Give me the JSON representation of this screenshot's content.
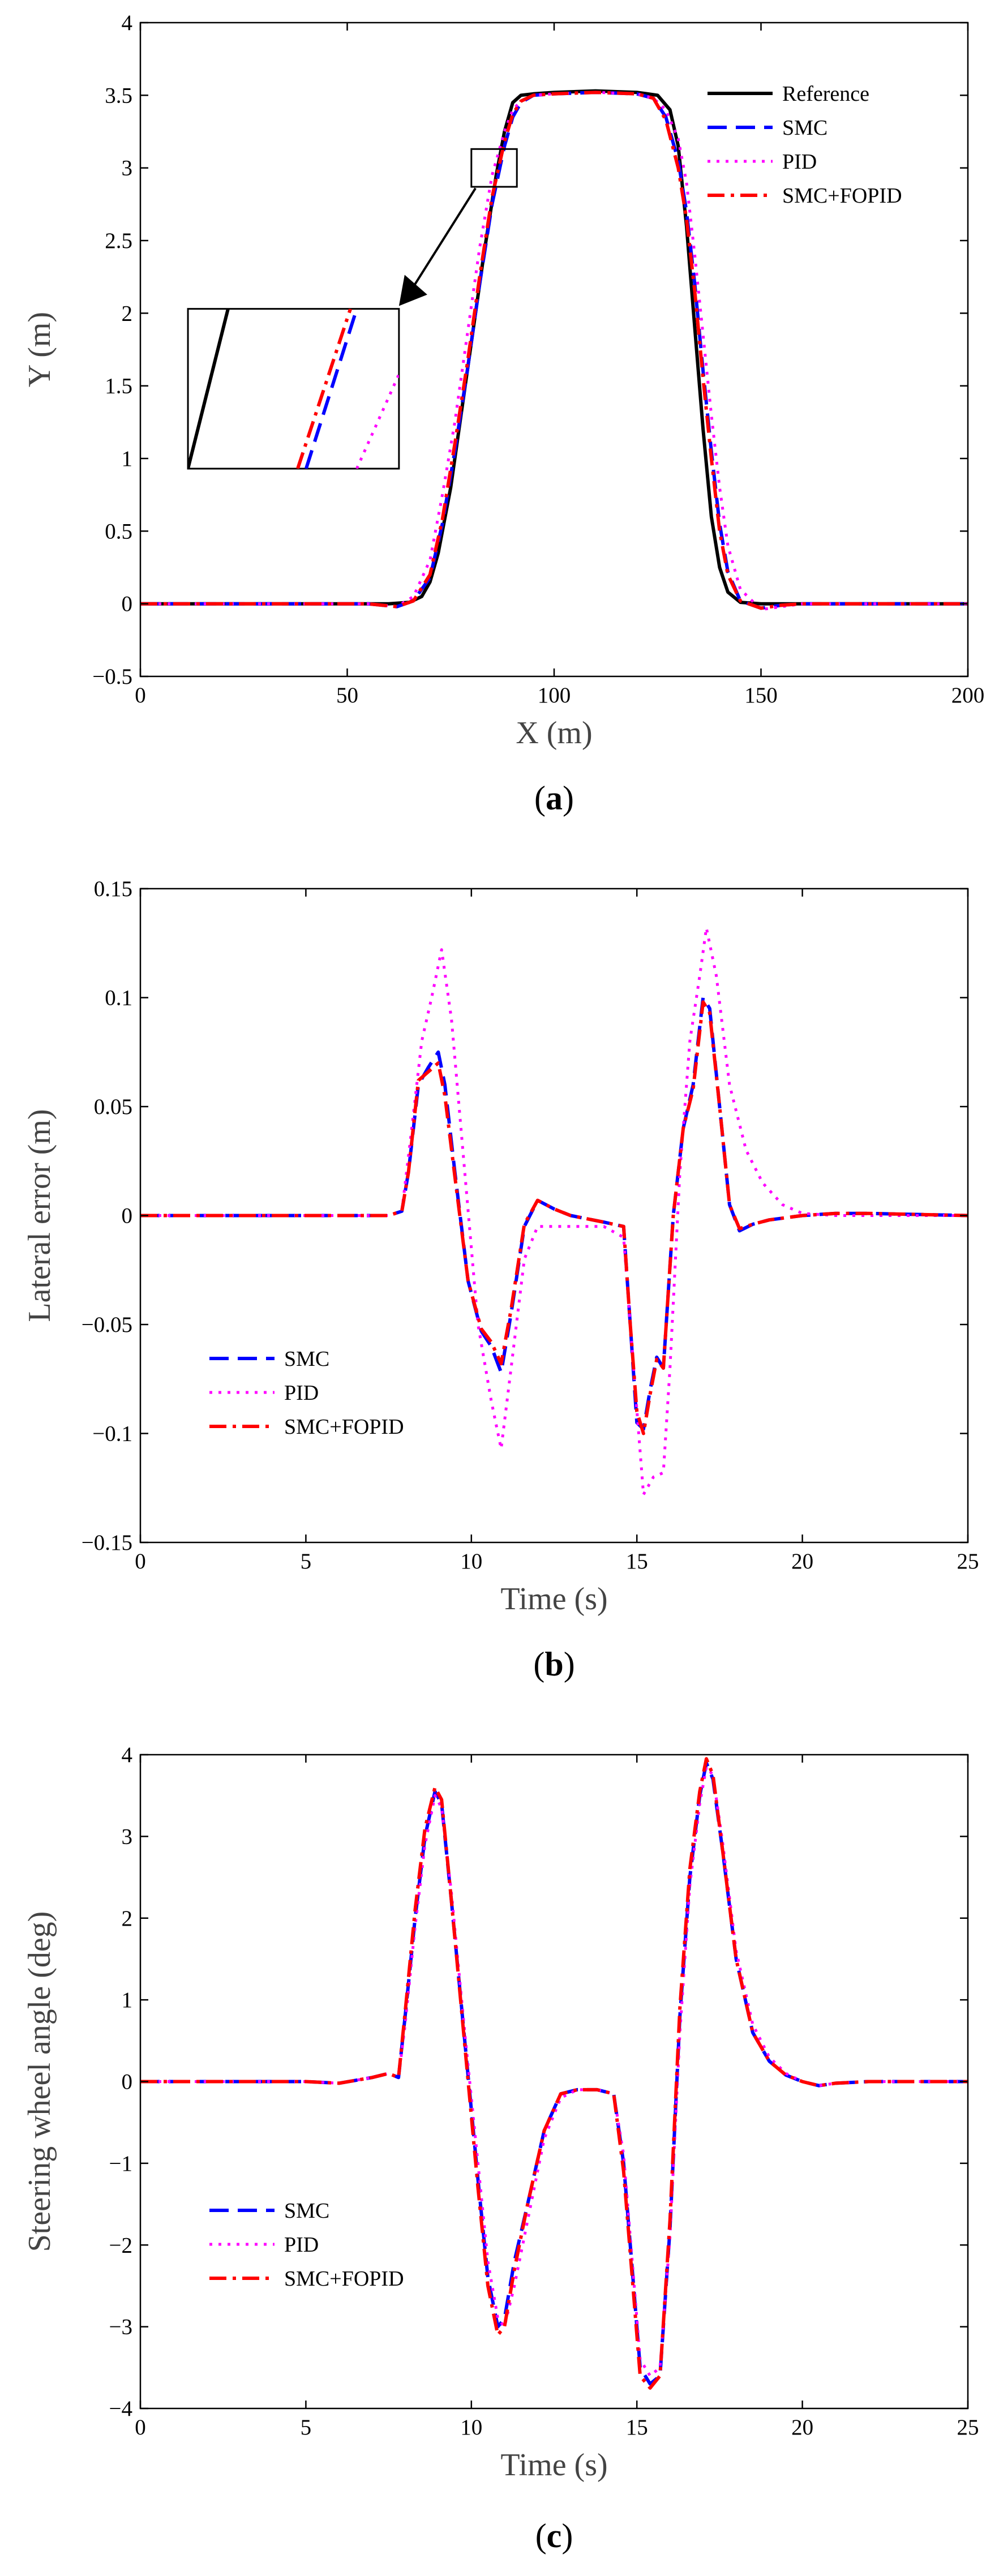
{
  "chart_data": [
    {
      "id": "a",
      "type": "line",
      "caption_open": "(",
      "caption_letter": "a",
      "caption_close": ")",
      "xlabel": "X (m)",
      "ylabel": "Y (m)",
      "xlim": [
        0,
        200
      ],
      "ylim": [
        -0.5,
        4
      ],
      "xticks": [
        0,
        50,
        100,
        150,
        200
      ],
      "xtick_labels": [
        "0",
        "50",
        "100",
        "150",
        "200"
      ],
      "yticks": [
        -0.5,
        0,
        0.5,
        1,
        1.5,
        2,
        2.5,
        3,
        3.5,
        4
      ],
      "ytick_labels": [
        "−0.5",
        "0",
        "0.5",
        "1",
        "1.5",
        "2",
        "2.5",
        "3",
        "3.5",
        "4"
      ],
      "legend_position": "top-right",
      "series": [
        {
          "name": "Reference",
          "color": "#000000",
          "style": "solid",
          "x": [
            0,
            60,
            65,
            68,
            70,
            72,
            75,
            78,
            80,
            83,
            86,
            88,
            90,
            92,
            95,
            100,
            110,
            120,
            125,
            128,
            130,
            132,
            134,
            136,
            138,
            140,
            142,
            145,
            150,
            200
          ],
          "y": [
            0,
            0,
            0.01,
            0.05,
            0.15,
            0.35,
            0.8,
            1.4,
            1.8,
            2.4,
            2.95,
            3.25,
            3.45,
            3.5,
            3.51,
            3.52,
            3.53,
            3.52,
            3.5,
            3.4,
            3.15,
            2.6,
            1.9,
            1.2,
            0.6,
            0.25,
            0.08,
            0.01,
            0,
            0
          ]
        },
        {
          "name": "SMC",
          "color": "#0000ff",
          "style": "dash",
          "x": [
            0,
            55,
            62,
            66,
            70,
            73,
            76,
            79,
            82,
            85,
            88,
            90,
            92,
            95,
            100,
            110,
            120,
            124,
            127,
            130,
            132,
            134,
            136,
            138,
            140,
            142,
            145,
            150,
            155,
            160,
            170,
            200
          ],
          "y": [
            0,
            0,
            -0.02,
            0.02,
            0.18,
            0.55,
            1.05,
            1.6,
            2.2,
            2.75,
            3.15,
            3.35,
            3.45,
            3.5,
            3.51,
            3.52,
            3.51,
            3.48,
            3.35,
            3.05,
            2.7,
            2.2,
            1.6,
            1.05,
            0.55,
            0.22,
            0.02,
            -0.03,
            -0.01,
            0,
            0,
            0
          ]
        },
        {
          "name": "PID",
          "color": "#ff00ff",
          "style": "dot",
          "x": [
            0,
            55,
            62,
            66,
            70,
            73,
            76,
            79,
            82,
            85,
            88,
            90,
            92,
            95,
            100,
            110,
            120,
            124,
            127,
            130,
            132,
            134,
            136,
            138,
            140,
            142,
            145,
            150,
            155,
            160,
            170,
            200
          ],
          "y": [
            0,
            0,
            -0.02,
            0.05,
            0.3,
            0.75,
            1.25,
            1.85,
            2.45,
            2.95,
            3.25,
            3.4,
            3.46,
            3.5,
            3.51,
            3.52,
            3.51,
            3.48,
            3.4,
            3.2,
            2.9,
            2.4,
            1.85,
            1.3,
            0.8,
            0.4,
            0.1,
            -0.04,
            -0.02,
            0,
            0,
            0
          ]
        },
        {
          "name": "SMC+FOPID",
          "color": "#ff0000",
          "style": "dashdot",
          "x": [
            0,
            55,
            62,
            66,
            70,
            73,
            76,
            79,
            82,
            85,
            88,
            90,
            92,
            95,
            100,
            110,
            120,
            124,
            127,
            130,
            132,
            134,
            136,
            138,
            140,
            142,
            145,
            150,
            155,
            160,
            170,
            200
          ],
          "y": [
            0,
            0,
            -0.02,
            0.02,
            0.2,
            0.58,
            1.1,
            1.65,
            2.25,
            2.8,
            3.18,
            3.37,
            3.46,
            3.5,
            3.51,
            3.52,
            3.51,
            3.48,
            3.33,
            3.0,
            2.65,
            2.15,
            1.55,
            1.0,
            0.5,
            0.2,
            0.02,
            -0.03,
            -0.01,
            0,
            0,
            0
          ]
        }
      ],
      "annotations": [
        "zoom-rectangle-around-x-85-y-3",
        "arrow-to-inset",
        "inset-magnified-view"
      ]
    },
    {
      "id": "b",
      "type": "line",
      "caption_open": "(",
      "caption_letter": "b",
      "caption_close": ")",
      "xlabel": "Time (s)",
      "ylabel": "Lateral error (m)",
      "xlim": [
        0,
        25
      ],
      "ylim": [
        -0.15,
        0.15
      ],
      "xticks": [
        0,
        5,
        10,
        15,
        20,
        25
      ],
      "xtick_labels": [
        "0",
        "5",
        "10",
        "15",
        "20",
        "25"
      ],
      "yticks": [
        -0.15,
        -0.1,
        -0.05,
        0,
        0.05,
        0.1,
        0.15
      ],
      "ytick_labels": [
        "−0.15",
        "−0.1",
        "−0.05",
        "0",
        "0.05",
        "0.1",
        "0.15"
      ],
      "legend_position": "bottom-left",
      "series": [
        {
          "name": "SMC",
          "color": "#0000ff",
          "style": "dash",
          "x": [
            0,
            5,
            7.5,
            7.9,
            8.1,
            8.4,
            8.7,
            9.0,
            9.2,
            9.5,
            9.9,
            10.3,
            10.6,
            10.9,
            11.2,
            11.6,
            12.0,
            12.5,
            13,
            14,
            14.6,
            14.8,
            15.0,
            15.2,
            15.4,
            15.6,
            15.8,
            16.1,
            16.4,
            16.7,
            17.0,
            17.2,
            17.5,
            17.8,
            18.1,
            18.5,
            19,
            20,
            21,
            22,
            25
          ],
          "y": [
            0,
            0,
            0,
            0.002,
            0.02,
            0.06,
            0.068,
            0.075,
            0.06,
            0.02,
            -0.03,
            -0.053,
            -0.06,
            -0.072,
            -0.045,
            -0.005,
            0.007,
            0.003,
            0,
            -0.003,
            -0.005,
            -0.05,
            -0.095,
            -0.098,
            -0.08,
            -0.065,
            -0.07,
            0,
            0.04,
            0.06,
            0.1,
            0.095,
            0.05,
            0.005,
            -0.007,
            -0.004,
            -0.002,
            0,
            0.001,
            0.001,
            0
          ]
        },
        {
          "name": "PID",
          "color": "#ff00ff",
          "style": "dot",
          "x": [
            0,
            5,
            7.5,
            7.9,
            8.2,
            8.5,
            8.8,
            9.1,
            9.4,
            9.8,
            10.2,
            10.6,
            10.9,
            11.2,
            11.6,
            12.0,
            12.5,
            13,
            14,
            14.6,
            14.9,
            15.2,
            15.5,
            15.8,
            16.0,
            16.3,
            16.6,
            16.9,
            17.1,
            17.4,
            17.8,
            18.3,
            18.8,
            19.4,
            20,
            21,
            22,
            25
          ],
          "y": [
            0,
            0,
            0,
            0.002,
            0.04,
            0.08,
            0.1,
            0.122,
            0.09,
            0.02,
            -0.05,
            -0.085,
            -0.107,
            -0.07,
            -0.02,
            -0.005,
            -0.005,
            -0.005,
            -0.005,
            -0.01,
            -0.07,
            -0.128,
            -0.12,
            -0.118,
            -0.07,
            0.02,
            0.08,
            0.11,
            0.132,
            0.11,
            0.06,
            0.03,
            0.015,
            0.005,
            0.001,
            0,
            0,
            0
          ]
        },
        {
          "name": "SMC+FOPID",
          "color": "#ff0000",
          "style": "dashdot",
          "x": [
            0,
            5,
            7.5,
            7.9,
            8.1,
            8.4,
            8.7,
            9.0,
            9.2,
            9.5,
            9.9,
            10.3,
            10.6,
            10.9,
            11.2,
            11.6,
            12.0,
            12.5,
            13,
            14,
            14.6,
            14.8,
            15.0,
            15.2,
            15.4,
            15.6,
            15.8,
            16.1,
            16.4,
            16.7,
            17.0,
            17.2,
            17.5,
            17.8,
            18.1,
            18.5,
            19,
            20,
            21,
            22,
            25
          ],
          "y": [
            0,
            0,
            0,
            0.002,
            0.02,
            0.062,
            0.066,
            0.07,
            0.055,
            0.018,
            -0.03,
            -0.052,
            -0.058,
            -0.068,
            -0.043,
            -0.004,
            0.007,
            0.003,
            0,
            -0.003,
            -0.005,
            -0.05,
            -0.09,
            -0.1,
            -0.082,
            -0.066,
            -0.07,
            0,
            0.04,
            0.058,
            0.098,
            0.093,
            0.05,
            0.005,
            -0.006,
            -0.004,
            -0.002,
            0,
            0.001,
            0.001,
            0
          ]
        }
      ]
    },
    {
      "id": "c",
      "type": "line",
      "caption_open": "(",
      "caption_letter": "c",
      "caption_close": ")",
      "xlabel": "Time (s)",
      "ylabel": "Steering wheel angle (deg)",
      "xlim": [
        0,
        25
      ],
      "ylim": [
        -4,
        4
      ],
      "xticks": [
        0,
        5,
        10,
        15,
        20,
        25
      ],
      "xtick_labels": [
        "0",
        "5",
        "10",
        "15",
        "20",
        "25"
      ],
      "yticks": [
        -4,
        -3,
        -2,
        -1,
        0,
        1,
        2,
        3,
        4
      ],
      "ytick_labels": [
        "−4",
        "−3",
        "−2",
        "−1",
        "0",
        "1",
        "2",
        "3",
        "4"
      ],
      "legend_position": "bottom-left",
      "series": [
        {
          "name": "SMC",
          "color": "#0000ff",
          "style": "dash",
          "x": [
            0,
            5,
            6,
            7,
            7.5,
            7.8,
            8.0,
            8.3,
            8.6,
            8.9,
            9.1,
            9.4,
            9.8,
            10.2,
            10.5,
            10.8,
            11.0,
            11.3,
            11.7,
            12.2,
            12.7,
            13.2,
            13.8,
            14.3,
            14.6,
            14.9,
            15.1,
            15.4,
            15.7,
            16.0,
            16.3,
            16.6,
            16.9,
            17.1,
            17.3,
            17.6,
            18.0,
            18.5,
            19.0,
            19.5,
            20.0,
            20.5,
            21,
            22,
            25
          ],
          "y": [
            0,
            0,
            -0.02,
            0.05,
            0.1,
            0.05,
            0.8,
            2.0,
            3.0,
            3.55,
            3.4,
            2.2,
            0.5,
            -1.2,
            -2.4,
            -3.0,
            -2.9,
            -2.2,
            -1.5,
            -0.6,
            -0.15,
            -0.1,
            -0.1,
            -0.15,
            -1.0,
            -2.5,
            -3.5,
            -3.7,
            -3.6,
            -1.8,
            0.8,
            2.5,
            3.5,
            3.9,
            3.7,
            2.8,
            1.5,
            0.6,
            0.25,
            0.08,
            0.0,
            -0.05,
            -0.02,
            0,
            0
          ]
        },
        {
          "name": "PID",
          "color": "#ff00ff",
          "style": "dot",
          "x": [
            0,
            5,
            6,
            7,
            7.5,
            7.8,
            8.0,
            8.3,
            8.6,
            8.9,
            9.1,
            9.4,
            9.8,
            10.2,
            10.5,
            10.8,
            11.0,
            11.3,
            11.7,
            12.2,
            12.7,
            13.2,
            13.8,
            14.3,
            14.6,
            14.9,
            15.1,
            15.4,
            15.7,
            16.0,
            16.3,
            16.6,
            16.9,
            17.1,
            17.3,
            17.6,
            18.0,
            18.5,
            19.0,
            19.5,
            20.0,
            20.5,
            21,
            22,
            25
          ],
          "y": [
            0,
            0,
            -0.02,
            0.05,
            0.1,
            0.05,
            0.7,
            1.9,
            2.9,
            3.5,
            3.35,
            2.3,
            0.6,
            -1.0,
            -2.2,
            -2.9,
            -3.0,
            -2.5,
            -1.7,
            -0.7,
            -0.2,
            -0.1,
            -0.1,
            -0.15,
            -0.9,
            -2.4,
            -3.4,
            -3.6,
            -3.5,
            -1.9,
            0.6,
            2.4,
            3.4,
            3.85,
            3.75,
            2.9,
            1.6,
            0.7,
            0.3,
            0.1,
            0.0,
            -0.05,
            -0.02,
            0,
            0
          ]
        },
        {
          "name": "SMC+FOPID",
          "color": "#ff0000",
          "style": "dashdot",
          "x": [
            0,
            5,
            6,
            7,
            7.5,
            7.8,
            8.0,
            8.3,
            8.6,
            8.9,
            9.1,
            9.4,
            9.8,
            10.2,
            10.5,
            10.8,
            11.0,
            11.3,
            11.7,
            12.2,
            12.7,
            13.2,
            13.8,
            14.3,
            14.6,
            14.9,
            15.1,
            15.4,
            15.7,
            16.0,
            16.3,
            16.6,
            16.9,
            17.1,
            17.3,
            17.6,
            18.0,
            18.5,
            19.0,
            19.5,
            20.0,
            20.5,
            21,
            22,
            25
          ],
          "y": [
            0,
            0,
            -0.02,
            0.05,
            0.1,
            0.05,
            0.85,
            2.1,
            3.1,
            3.6,
            3.45,
            2.2,
            0.45,
            -1.3,
            -2.5,
            -3.1,
            -3.0,
            -2.3,
            -1.5,
            -0.6,
            -0.15,
            -0.1,
            -0.1,
            -0.15,
            -1.1,
            -2.6,
            -3.6,
            -3.75,
            -3.6,
            -1.7,
            0.9,
            2.6,
            3.55,
            3.95,
            3.75,
            2.8,
            1.5,
            0.6,
            0.25,
            0.08,
            0.0,
            -0.05,
            -0.02,
            0,
            0
          ]
        }
      ]
    }
  ]
}
